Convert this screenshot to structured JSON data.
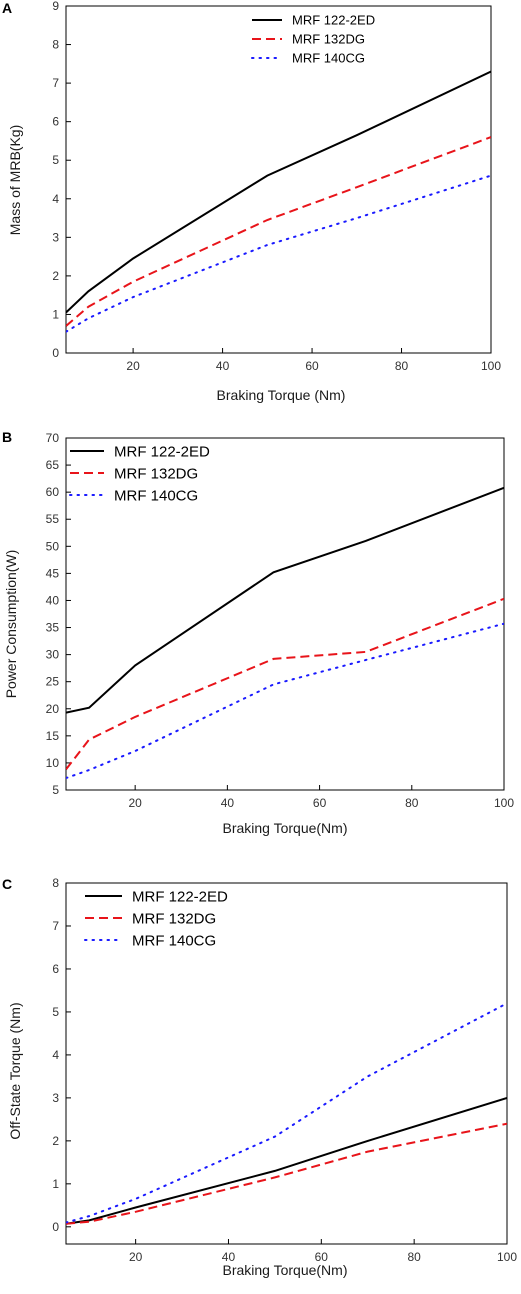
{
  "figure": {
    "panels": [
      {
        "letter": "A"
      },
      {
        "letter": "B"
      },
      {
        "letter": "C"
      }
    ]
  },
  "chart_data": [
    {
      "type": "line",
      "panel": "A",
      "xlabel": "Braking Torque (Nm)",
      "ylabel": "Mass of MRB(Kg)",
      "xlim": [
        5,
        100
      ],
      "ylim": [
        0,
        9
      ],
      "xticks": [
        20,
        40,
        60,
        80,
        100
      ],
      "yticks": [
        0,
        1,
        2,
        3,
        4,
        5,
        6,
        7,
        8,
        9
      ],
      "legend_position": "top-right",
      "grid": false,
      "series": [
        {
          "name": "MRF 122-2ED",
          "color": "#000000",
          "dash": "solid",
          "x": [
            5,
            10,
            20,
            50,
            70,
            100
          ],
          "y": [
            1.05,
            1.6,
            2.45,
            4.6,
            5.65,
            7.3
          ]
        },
        {
          "name": "MRF 132DG",
          "color": "#e8141a",
          "dash": "dashed",
          "x": [
            5,
            10,
            20,
            50,
            70,
            100
          ],
          "y": [
            0.7,
            1.2,
            1.85,
            3.45,
            4.3,
            5.6
          ]
        },
        {
          "name": "MRF 140CG",
          "color": "#1a1aff",
          "dash": "dotted",
          "x": [
            5,
            10,
            20,
            50,
            70,
            100
          ],
          "y": [
            0.55,
            0.9,
            1.45,
            2.8,
            3.5,
            4.6
          ]
        }
      ]
    },
    {
      "type": "line",
      "panel": "B",
      "xlabel": "Braking Torque(Nm)",
      "ylabel": "Power Consumption(W)",
      "xlim": [
        5,
        100
      ],
      "ylim": [
        5,
        70
      ],
      "xticks": [
        20,
        40,
        60,
        80,
        100
      ],
      "yticks": [
        5,
        10,
        15,
        20,
        25,
        30,
        35,
        40,
        45,
        50,
        55,
        60,
        65,
        70
      ],
      "legend_position": "top-left",
      "grid": false,
      "series": [
        {
          "name": "MRF 122-2ED",
          "color": "#000000",
          "dash": "solid",
          "x": [
            5,
            10,
            20,
            50,
            70,
            100
          ],
          "y": [
            19.3,
            20.2,
            28,
            45.2,
            51,
            60.8
          ]
        },
        {
          "name": "MRF 132DG",
          "color": "#e8141a",
          "dash": "dashed",
          "x": [
            5,
            10,
            20,
            50,
            70,
            100
          ],
          "y": [
            8.8,
            14.3,
            18.5,
            29.2,
            30.5,
            40.3
          ]
        },
        {
          "name": "MRF 140CG",
          "color": "#1a1aff",
          "dash": "dotted",
          "x": [
            5,
            10,
            20,
            50,
            70,
            100
          ],
          "y": [
            7.2,
            8.7,
            12.2,
            24.5,
            29,
            35.7
          ]
        }
      ]
    },
    {
      "type": "line",
      "panel": "C",
      "xlabel": "Braking Torque(Nm)",
      "ylabel": "Off-State Torque (Nm)",
      "xlim": [
        5,
        100
      ],
      "ylim": [
        -0.4,
        8
      ],
      "xticks": [
        20,
        40,
        60,
        80,
        100
      ],
      "yticks": [
        0,
        1,
        2,
        3,
        4,
        5,
        6,
        7,
        8
      ],
      "legend_position": "top-left",
      "grid": false,
      "series": [
        {
          "name": "MRF 122-2ED",
          "color": "#000000",
          "dash": "solid",
          "x": [
            5,
            10,
            20,
            50,
            70,
            100
          ],
          "y": [
            0.07,
            0.15,
            0.45,
            1.3,
            2.0,
            3.0
          ]
        },
        {
          "name": "MRF 132DG",
          "color": "#e8141a",
          "dash": "dashed",
          "x": [
            5,
            10,
            20,
            50,
            70,
            100
          ],
          "y": [
            0.07,
            0.12,
            0.35,
            1.15,
            1.75,
            2.4
          ]
        },
        {
          "name": "MRF 140CG",
          "color": "#1a1aff",
          "dash": "dotted",
          "x": [
            5,
            10,
            20,
            50,
            70,
            100
          ],
          "y": [
            0.1,
            0.25,
            0.65,
            2.1,
            3.5,
            5.2
          ]
        }
      ]
    }
  ]
}
